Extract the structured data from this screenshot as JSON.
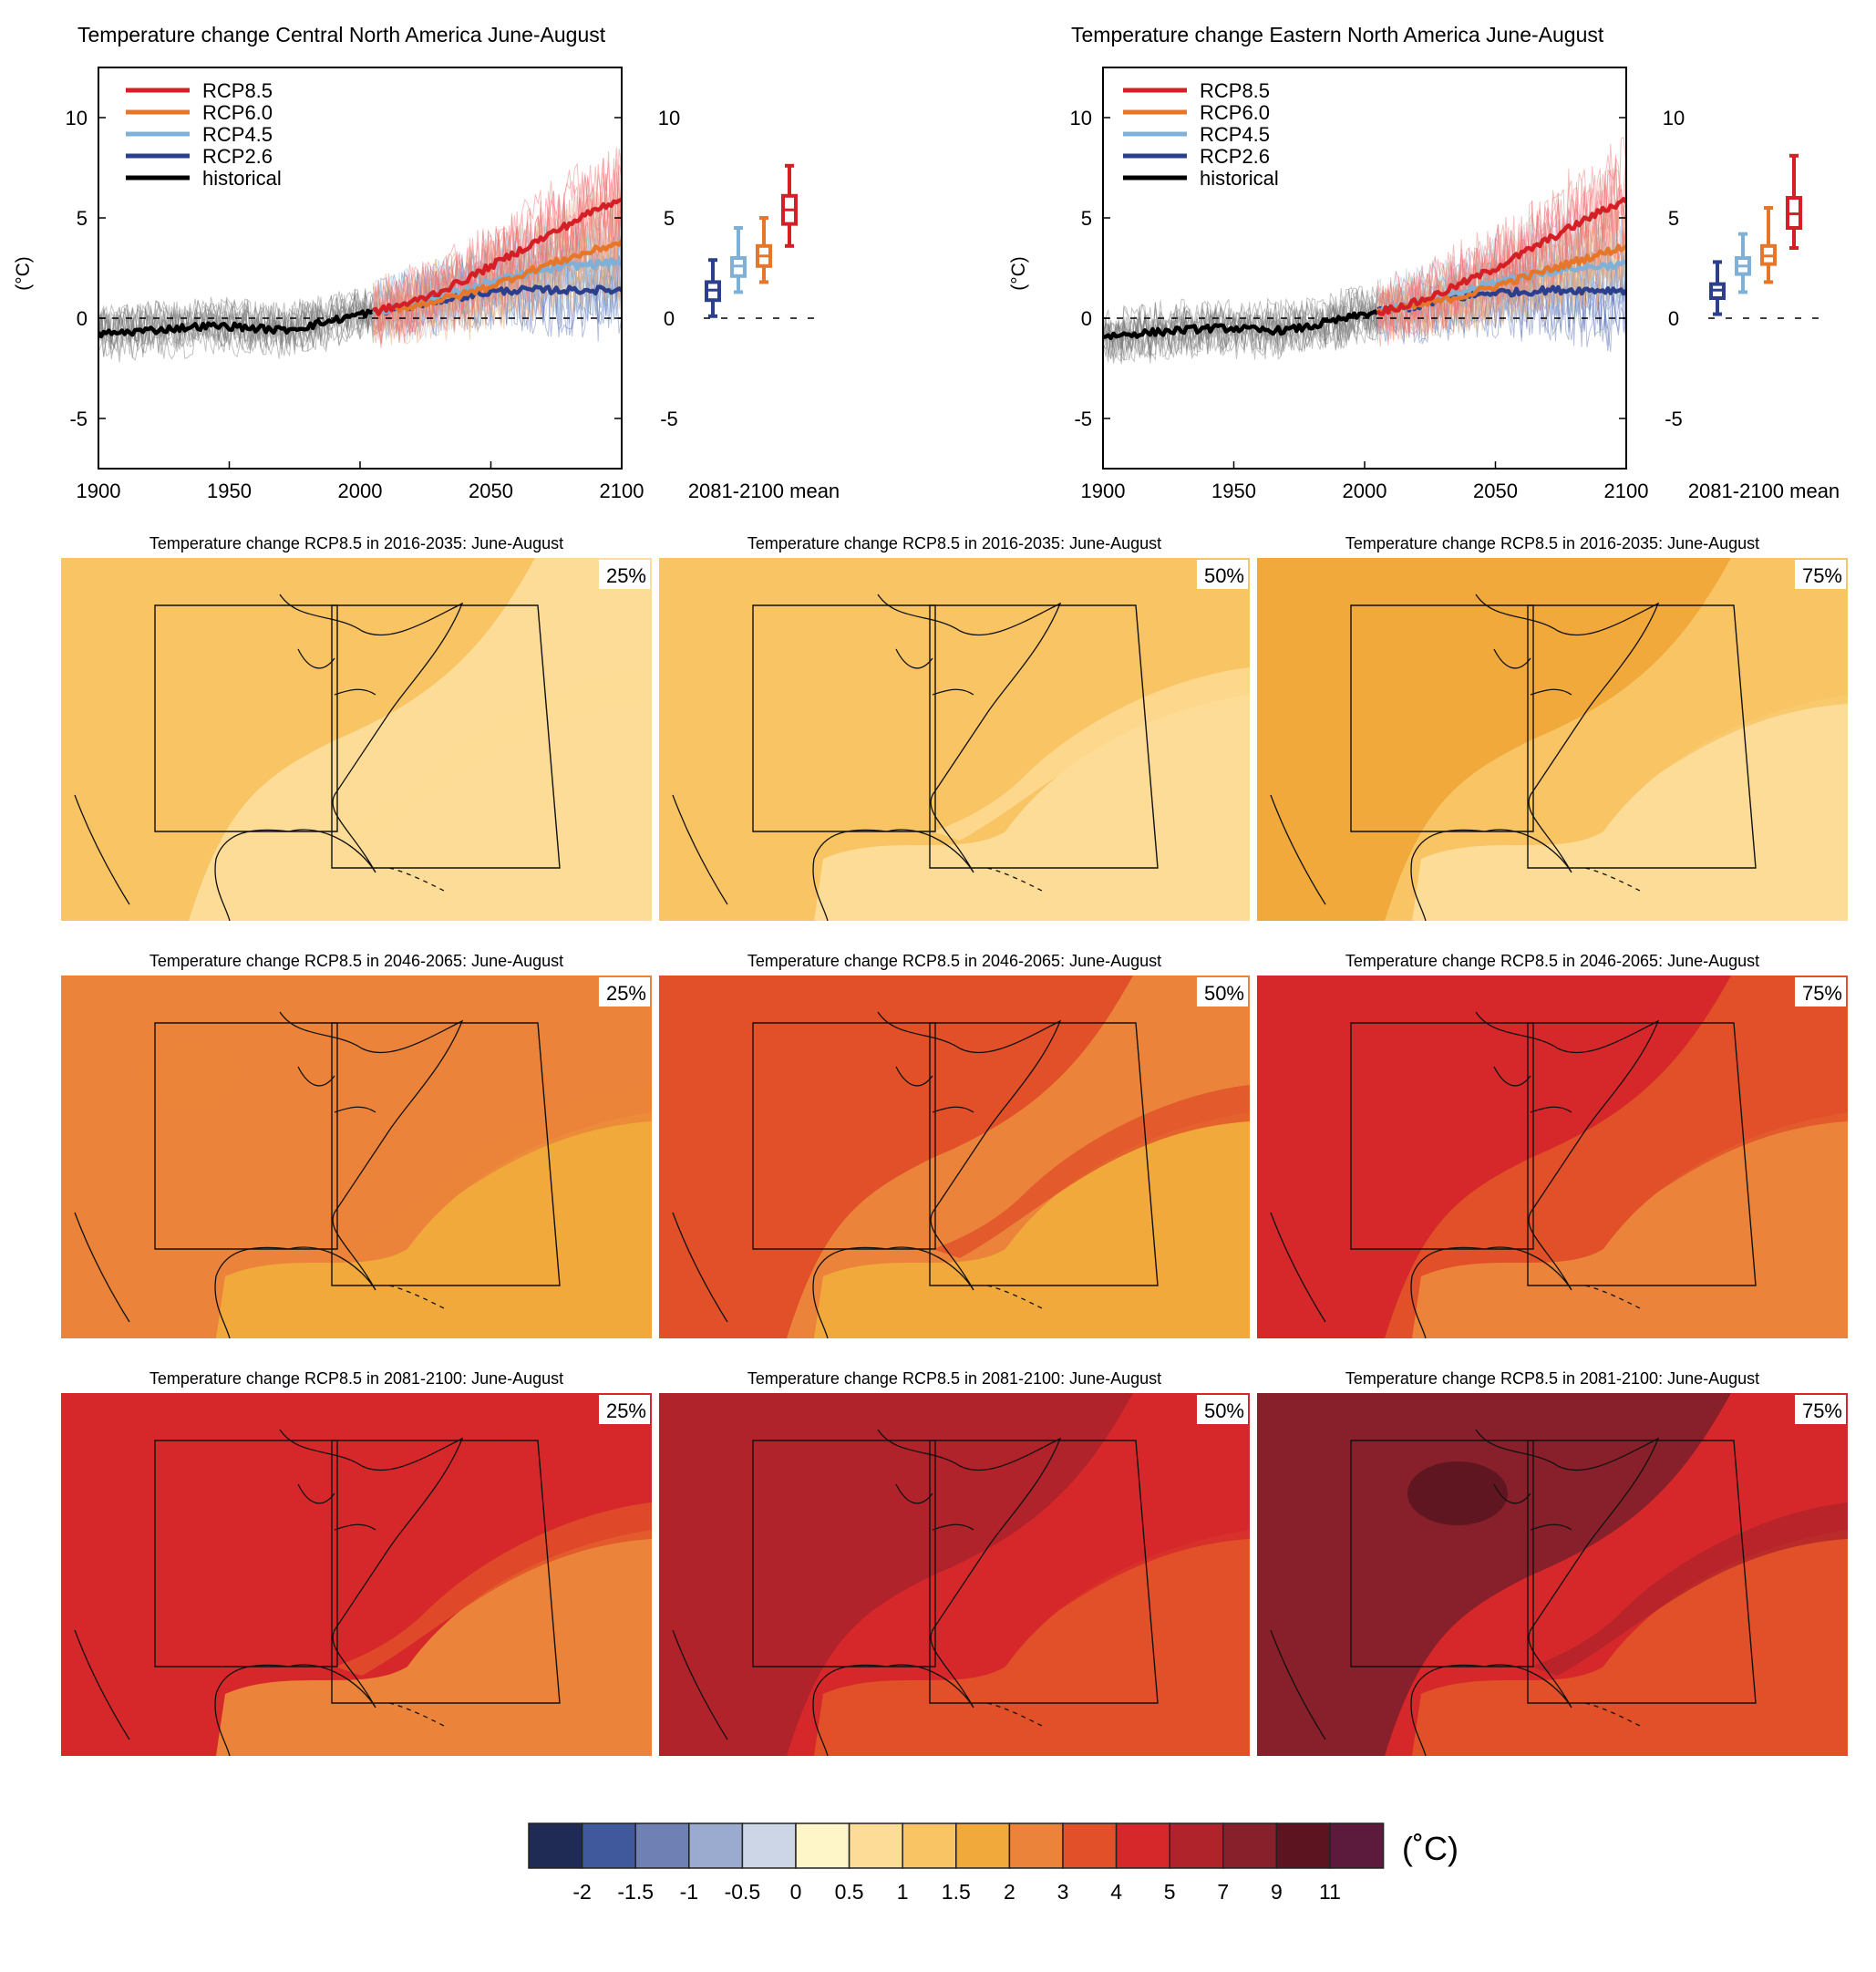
{
  "line_panels": [
    {
      "title": "Temperature change Central North America June-August",
      "ylabel": "(°C)",
      "xticks": [
        "1900",
        "1950",
        "2000",
        "2050",
        "2100"
      ],
      "yticks": [
        "10",
        "5",
        "0",
        "-5"
      ],
      "legend": [
        "RCP8.5",
        "RCP6.0",
        "RCP4.5",
        "RCP2.6",
        "historical"
      ],
      "boxplot_label": "2081-2100 mean"
    },
    {
      "title": "Temperature change Eastern North America June-August",
      "ylabel": "(°C)",
      "xticks": [
        "1900",
        "1950",
        "2000",
        "2050",
        "2100"
      ],
      "yticks": [
        "10",
        "5",
        "0",
        "-5"
      ],
      "legend": [
        "RCP8.5",
        "RCP6.0",
        "RCP4.5",
        "RCP2.6",
        "historical"
      ],
      "boxplot_label": "2081-2100 mean"
    }
  ],
  "map_panels": {
    "titles": [
      "Temperature change RCP8.5 in 2016-2035: June-August",
      "Temperature change RCP8.5 in 2046-2065: June-August",
      "Temperature change RCP8.5 in 2081-2100: June-August"
    ],
    "percentiles": [
      "25%",
      "50%",
      "75%"
    ]
  },
  "colorbar": {
    "unit": "(˚C)",
    "labels": [
      "-2",
      "-1.5",
      "-1",
      "-0.5",
      "0",
      "0.5",
      "1",
      "1.5",
      "2",
      "3",
      "4",
      "5",
      "7",
      "9",
      "11"
    ],
    "colors": [
      "#1f2a55",
      "#40589c",
      "#6f80b4",
      "#9aabcf",
      "#cdd6e6",
      "#fef6c8",
      "#fcdc96",
      "#f8c464",
      "#f1a93c",
      "#eb843a",
      "#e15029",
      "#d6282a",
      "#b0232b",
      "#87202a",
      "#5c1520",
      "#5c1a3c"
    ]
  },
  "chart_data": [
    {
      "type": "line",
      "title": "Temperature change Central North America June-August",
      "ylabel": "(°C)",
      "xlim": [
        1900,
        2100
      ],
      "ylim": [
        -7.5,
        12.5
      ],
      "series": [
        {
          "name": "historical",
          "color": "#000000",
          "x": [
            1900,
            1910,
            1920,
            1930,
            1940,
            1950,
            1960,
            1970,
            1980,
            1990,
            2000,
            2005
          ],
          "values": [
            -0.8,
            -0.7,
            -0.6,
            -0.5,
            -0.4,
            -0.4,
            -0.5,
            -0.6,
            -0.4,
            -0.1,
            0.2,
            0.3
          ]
        },
        {
          "name": "RCP2.6",
          "color": "#2c3f8c",
          "x": [
            2005,
            2020,
            2030,
            2040,
            2050,
            2060,
            2070,
            2080,
            2090,
            2100
          ],
          "values": [
            0.3,
            0.6,
            0.9,
            1.1,
            1.3,
            1.4,
            1.4,
            1.4,
            1.4,
            1.4
          ]
        },
        {
          "name": "RCP4.5",
          "color": "#7fb0d8",
          "x": [
            2005,
            2020,
            2030,
            2040,
            2050,
            2060,
            2070,
            2080,
            2090,
            2100
          ],
          "values": [
            0.3,
            0.7,
            1.0,
            1.4,
            1.8,
            2.1,
            2.4,
            2.6,
            2.7,
            2.8
          ]
        },
        {
          "name": "RCP6.0",
          "color": "#e5762a",
          "x": [
            2005,
            2020,
            2030,
            2040,
            2050,
            2060,
            2070,
            2080,
            2090,
            2100
          ],
          "values": [
            0.3,
            0.6,
            0.9,
            1.2,
            1.6,
            2.1,
            2.6,
            3.0,
            3.4,
            3.8
          ]
        },
        {
          "name": "RCP8.5",
          "color": "#d41f26",
          "x": [
            2005,
            2020,
            2030,
            2040,
            2050,
            2060,
            2070,
            2080,
            2090,
            2100
          ],
          "values": [
            0.3,
            0.8,
            1.3,
            1.9,
            2.6,
            3.3,
            4.0,
            4.7,
            5.4,
            6.0
          ]
        }
      ],
      "boxplots_2081_2100_mean": [
        {
          "name": "RCP2.6",
          "color": "#2c3f8c",
          "min": 0.1,
          "q1": 0.9,
          "median": 1.4,
          "q3": 1.8,
          "max": 2.9
        },
        {
          "name": "RCP4.5",
          "color": "#7fb0d8",
          "min": 1.3,
          "q1": 2.1,
          "median": 2.6,
          "q3": 3.0,
          "max": 4.5
        },
        {
          "name": "RCP6.0",
          "color": "#e5762a",
          "min": 1.8,
          "q1": 2.6,
          "median": 3.1,
          "q3": 3.6,
          "max": 5.0
        },
        {
          "name": "RCP8.5",
          "color": "#d41f26",
          "min": 3.6,
          "q1": 4.7,
          "median": 5.4,
          "q3": 6.1,
          "max": 7.6
        }
      ]
    },
    {
      "type": "line",
      "title": "Temperature change Eastern North America June-August",
      "ylabel": "(°C)",
      "xlim": [
        1900,
        2100
      ],
      "ylim": [
        -7.5,
        12.5
      ],
      "series": [
        {
          "name": "historical",
          "color": "#000000",
          "x": [
            1900,
            1910,
            1920,
            1930,
            1940,
            1950,
            1960,
            1970,
            1980,
            1990,
            2000,
            2005
          ],
          "values": [
            -0.9,
            -0.8,
            -0.7,
            -0.6,
            -0.5,
            -0.5,
            -0.6,
            -0.6,
            -0.4,
            -0.1,
            0.2,
            0.3
          ]
        },
        {
          "name": "RCP2.6",
          "color": "#2c3f8c",
          "x": [
            2005,
            2020,
            2030,
            2040,
            2050,
            2060,
            2070,
            2080,
            2090,
            2100
          ],
          "values": [
            0.3,
            0.6,
            0.9,
            1.1,
            1.3,
            1.3,
            1.4,
            1.4,
            1.4,
            1.4
          ]
        },
        {
          "name": "RCP4.5",
          "color": "#7fb0d8",
          "x": [
            2005,
            2020,
            2030,
            2040,
            2050,
            2060,
            2070,
            2080,
            2090,
            2100
          ],
          "values": [
            0.3,
            0.7,
            1.0,
            1.4,
            1.8,
            2.1,
            2.3,
            2.5,
            2.6,
            2.7
          ]
        },
        {
          "name": "RCP6.0",
          "color": "#e5762a",
          "x": [
            2005,
            2020,
            2030,
            2040,
            2050,
            2060,
            2070,
            2080,
            2090,
            2100
          ],
          "values": [
            0.3,
            0.6,
            0.9,
            1.2,
            1.6,
            2.0,
            2.4,
            2.8,
            3.2,
            3.6
          ]
        },
        {
          "name": "RCP8.5",
          "color": "#d41f26",
          "x": [
            2005,
            2020,
            2030,
            2040,
            2050,
            2060,
            2070,
            2080,
            2090,
            2100
          ],
          "values": [
            0.3,
            0.8,
            1.3,
            1.9,
            2.5,
            3.2,
            3.9,
            4.6,
            5.3,
            5.9
          ]
        }
      ],
      "boxplots_2081_2100_mean": [
        {
          "name": "RCP2.6",
          "color": "#2c3f8c",
          "min": 0.2,
          "q1": 1.0,
          "median": 1.4,
          "q3": 1.7,
          "max": 2.8
        },
        {
          "name": "RCP4.5",
          "color": "#7fb0d8",
          "min": 1.3,
          "q1": 2.2,
          "median": 2.6,
          "q3": 3.0,
          "max": 4.2
        },
        {
          "name": "RCP6.0",
          "color": "#e5762a",
          "min": 1.8,
          "q1": 2.7,
          "median": 3.1,
          "q3": 3.6,
          "max": 5.5
        },
        {
          "name": "RCP8.5",
          "color": "#d41f26",
          "min": 3.5,
          "q1": 4.5,
          "median": 5.2,
          "q3": 6.0,
          "max": 8.1
        }
      ]
    }
  ]
}
